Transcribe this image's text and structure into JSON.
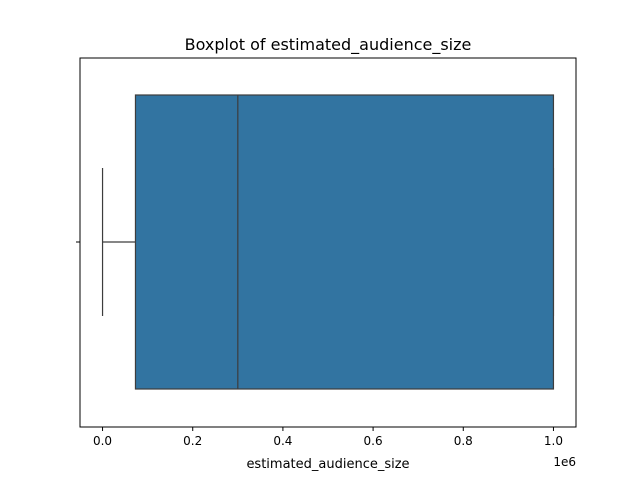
{
  "chart_data": {
    "type": "box",
    "title": "Boxplot of estimated_audience_size",
    "xlabel": "estimated_audience_size",
    "ylabel": "",
    "axis_offset_label": "1e6",
    "xlim": [
      -50000,
      1050000
    ],
    "x_ticks": [
      0,
      200000,
      400000,
      600000,
      800000,
      1000000
    ],
    "x_tick_labels": [
      "0.0",
      "0.2",
      "0.4",
      "0.6",
      "0.8",
      "1.0"
    ],
    "orientation": "horizontal",
    "grid": false,
    "series": [
      {
        "whisker_low": 0,
        "q1": 73000,
        "median": 300000,
        "q3": 1000000,
        "whisker_high": 1000000
      }
    ],
    "colors": {
      "box_fill": "#3274a1",
      "line": "#3d3d3d",
      "spine": "#000000"
    }
  }
}
